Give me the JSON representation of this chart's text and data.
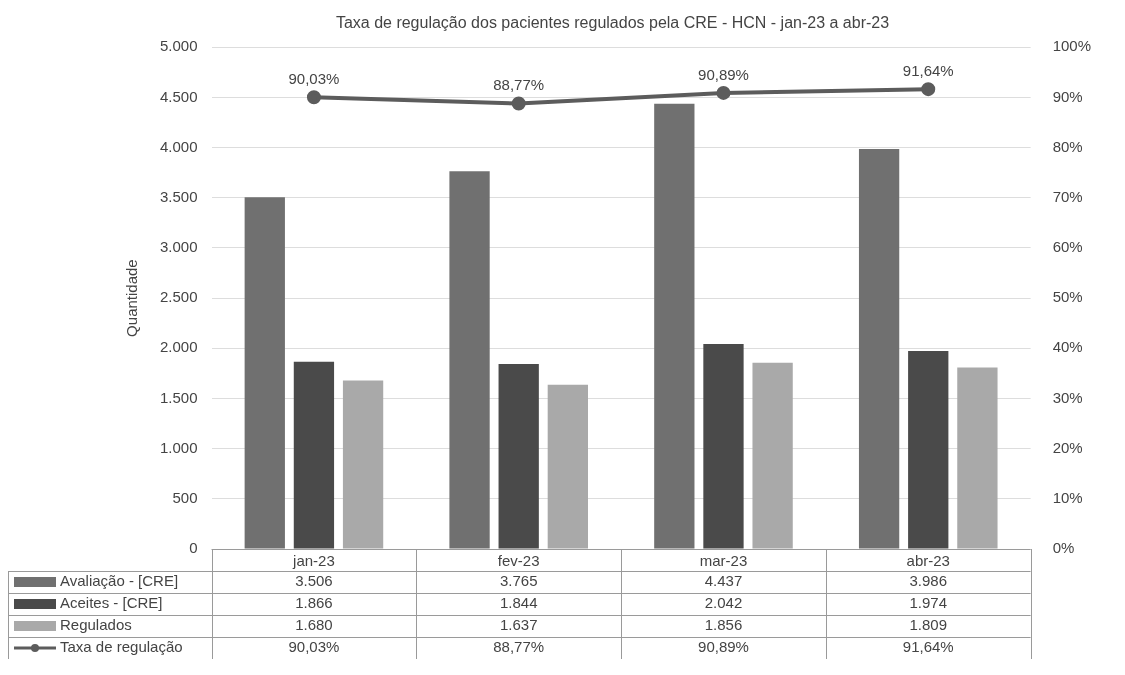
{
  "chart_data": {
    "type": "bar",
    "title": "Taxa de regulação dos pacientes regulados pela CRE - HCN - jan-23 a abr-23",
    "ylabel": "Quantidade",
    "categories": [
      "jan-23",
      "fev-23",
      "mar-23",
      "abr-23"
    ],
    "series": [
      {
        "name": "Avaliação - [CRE]",
        "color": "#707070",
        "values": [
          3506,
          3765,
          4437,
          3986
        ],
        "value_labels": [
          "3.506",
          "3.765",
          "4.437",
          "3.986"
        ]
      },
      {
        "name": "Aceites - [CRE]",
        "color": "#4a4a4a",
        "values": [
          1866,
          1844,
          2042,
          1974
        ],
        "value_labels": [
          "1.866",
          "1.844",
          "2.042",
          "1.974"
        ]
      },
      {
        "name": "Regulados",
        "color": "#a9a9a9",
        "values": [
          1680,
          1637,
          1856,
          1809
        ],
        "value_labels": [
          "1.680",
          "1.637",
          "1.856",
          "1.809"
        ]
      },
      {
        "name": "Taxa de regulação",
        "type": "line",
        "axis": "y2",
        "color": "#5c5c5c",
        "values": [
          90.03,
          88.77,
          90.89,
          91.64
        ],
        "value_labels": [
          "90,03%",
          "88,77%",
          "90,89%",
          "91,64%"
        ]
      }
    ],
    "ylim": [
      0,
      5000
    ],
    "yticks": [
      {
        "value": 0,
        "label": "0"
      },
      {
        "value": 500,
        "label": "500"
      },
      {
        "value": 1000,
        "label": "1.000"
      },
      {
        "value": 1500,
        "label": "1.500"
      },
      {
        "value": 2000,
        "label": "2.000"
      },
      {
        "value": 2500,
        "label": "2.500"
      },
      {
        "value": 3000,
        "label": "3.000"
      },
      {
        "value": 3500,
        "label": "3.500"
      },
      {
        "value": 4000,
        "label": "4.000"
      },
      {
        "value": 4500,
        "label": "4.500"
      },
      {
        "value": 5000,
        "label": "5.000"
      }
    ],
    "y2lim": [
      0,
      100
    ],
    "y2ticks": [
      {
        "value": 0,
        "label": "0%"
      },
      {
        "value": 10,
        "label": "10%"
      },
      {
        "value": 20,
        "label": "20%"
      },
      {
        "value": 30,
        "label": "30%"
      },
      {
        "value": 40,
        "label": "40%"
      },
      {
        "value": 50,
        "label": "50%"
      },
      {
        "value": 60,
        "label": "60%"
      },
      {
        "value": 70,
        "label": "70%"
      },
      {
        "value": 80,
        "label": "80%"
      },
      {
        "value": 90,
        "label": "90%"
      },
      {
        "value": 100,
        "label": "100%"
      }
    ],
    "grid": "y",
    "legend": "bottom left",
    "marker": "circle",
    "line_style": "solid"
  }
}
